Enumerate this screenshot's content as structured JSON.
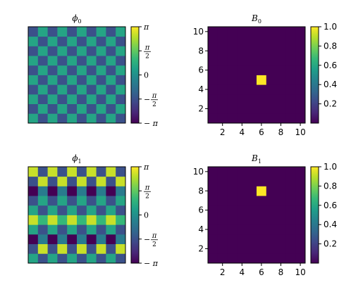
{
  "colormap": [
    "#440154",
    "#482878",
    "#3e4989",
    "#31688e",
    "#26828e",
    "#1f9e89",
    "#35b779",
    "#6ece58",
    "#b5de2b",
    "#fde725"
  ],
  "chart_data": [
    {
      "type": "heatmap",
      "title": {
        "symbol": "ϕ",
        "sub": "0"
      },
      "matrix": [
        [
          0.5236,
          -1.5708,
          0.5236,
          -1.5708,
          0.5236,
          -1.5708,
          0.5236,
          -1.5708,
          0.5236,
          -1.5708
        ],
        [
          -1.5708,
          0.5236,
          -1.5708,
          0.5236,
          -1.5708,
          0.5236,
          -1.5708,
          0.5236,
          -1.5708,
          0.5236
        ],
        [
          0.5236,
          -1.5708,
          0.5236,
          -1.5708,
          0.5236,
          -1.5708,
          0.5236,
          -1.5708,
          0.5236,
          -1.5708
        ],
        [
          -1.5708,
          0.5236,
          -1.5708,
          0.5236,
          -1.5708,
          0.5236,
          -1.5708,
          0.5236,
          -1.5708,
          0.5236
        ],
        [
          0.5236,
          -1.5708,
          0.5236,
          -1.5708,
          0.5236,
          -1.5708,
          0.5236,
          -1.5708,
          0.5236,
          -1.5708
        ],
        [
          -1.5708,
          0.5236,
          -1.5708,
          0.5236,
          -1.5708,
          0.5236,
          -1.5708,
          0.5236,
          -1.5708,
          0.5236
        ],
        [
          0.5236,
          -1.5708,
          0.5236,
          -1.5708,
          0.5236,
          -1.5708,
          0.5236,
          -1.5708,
          0.5236,
          -1.5708
        ],
        [
          -1.5708,
          0.5236,
          -1.5708,
          0.5236,
          -1.5708,
          0.5236,
          -1.5708,
          0.5236,
          -1.5708,
          0.5236
        ],
        [
          0.5236,
          -1.5708,
          0.5236,
          -1.5708,
          0.5236,
          -1.5708,
          0.5236,
          -1.5708,
          0.5236,
          -1.5708
        ],
        [
          -1.5708,
          0.5236,
          -1.5708,
          0.5236,
          -1.5708,
          0.5236,
          -1.5708,
          0.5236,
          -1.5708,
          0.5236
        ]
      ],
      "vmin": -3.1416,
      "vmax": 3.1416,
      "axes_visible": false,
      "colorbar": {
        "ticks": [
          {
            "value": 3.1416,
            "label": "π",
            "kind": "math",
            "sign": ""
          },
          {
            "value": 1.5708,
            "label": "π/2",
            "kind": "frac",
            "sign": ""
          },
          {
            "value": 0,
            "label": "0",
            "kind": "plain",
            "sign": ""
          },
          {
            "value": -1.5708,
            "label": "−π/2",
            "kind": "frac",
            "sign": "−"
          },
          {
            "value": -3.1416,
            "label": "−π",
            "kind": "math",
            "sign": "−"
          }
        ]
      }
    },
    {
      "type": "heatmap",
      "title": {
        "symbol": "B",
        "sub": "0"
      },
      "x": [
        1,
        2,
        3,
        4,
        5,
        6,
        7,
        8,
        9,
        10
      ],
      "y": [
        1,
        2,
        3,
        4,
        5,
        6,
        7,
        8,
        9,
        10
      ],
      "matrix": [
        [
          0,
          0,
          0,
          0,
          0,
          0,
          0,
          0,
          0,
          0
        ],
        [
          0,
          0,
          0,
          0,
          0,
          0,
          0,
          0,
          0,
          0
        ],
        [
          0,
          0,
          0,
          0,
          0,
          0,
          0,
          0,
          0,
          0
        ],
        [
          0,
          0,
          0,
          0,
          0,
          0,
          0,
          0,
          0,
          0
        ],
        [
          0,
          0,
          0,
          0,
          0,
          1,
          0,
          0,
          0,
          0
        ],
        [
          0,
          0,
          0,
          0,
          0,
          0,
          0,
          0,
          0,
          0
        ],
        [
          0,
          0,
          0,
          0,
          0,
          0,
          0,
          0,
          0,
          0
        ],
        [
          0,
          0,
          0,
          0,
          0,
          0,
          0,
          0,
          0,
          0
        ],
        [
          0,
          0,
          0,
          0,
          0,
          0,
          0,
          0,
          0,
          0
        ],
        [
          0,
          0,
          0,
          0,
          0,
          0,
          0,
          0,
          0,
          0
        ]
      ],
      "vmin": 0,
      "vmax": 1,
      "axes_visible": true,
      "xlim": [
        0.5,
        10.5
      ],
      "ylim": [
        0.5,
        10.5
      ],
      "xticks": [
        2,
        4,
        6,
        8,
        10
      ],
      "yticks": [
        2,
        4,
        6,
        8,
        10
      ],
      "colorbar": {
        "ticks": [
          {
            "value": 1.0,
            "label": "1.0"
          },
          {
            "value": 0.8,
            "label": "0.8"
          },
          {
            "value": 0.6,
            "label": "0.6"
          },
          {
            "value": 0.4,
            "label": "0.4"
          },
          {
            "value": 0.2,
            "label": "0.2"
          }
        ]
      }
    },
    {
      "type": "heatmap",
      "title": {
        "symbol": "ϕ",
        "sub": "1"
      },
      "matrix": [
        [
          0.5236,
          -1.5708,
          0.5236,
          -1.5708,
          0.5236,
          -1.5708,
          0.5236,
          -1.5708,
          0.5236,
          -1.5708
        ],
        [
          -1.5708,
          2.618,
          -1.5708,
          2.618,
          -1.5708,
          2.618,
          -1.5708,
          2.618,
          -1.5708,
          2.618
        ],
        [
          -3.1416,
          -0.5236,
          -3.1416,
          -0.5236,
          -3.1416,
          -0.5236,
          -3.1416,
          -0.5236,
          -3.1416,
          -0.5236
        ],
        [
          0.5236,
          -1.5708,
          0.5236,
          -1.5708,
          0.5236,
          -1.5708,
          0.5236,
          -1.5708,
          0.5236,
          -1.5708
        ],
        [
          2.618,
          1.0472,
          2.618,
          1.0472,
          2.618,
          1.0472,
          2.618,
          1.0472,
          2.618,
          1.0472
        ],
        [
          0.5236,
          -1.5708,
          0.5236,
          -1.5708,
          0.5236,
          -1.5708,
          0.5236,
          -1.5708,
          0.5236,
          -1.5708
        ],
        [
          -1.5708,
          0.5236,
          -1.5708,
          0.5236,
          -1.5708,
          0.5236,
          -1.5708,
          0.5236,
          -1.5708,
          0.5236
        ],
        [
          -3.1416,
          -0.5236,
          -3.1416,
          -0.5236,
          -3.1416,
          -0.5236,
          -3.1416,
          -0.5236,
          -3.1416,
          -0.5236
        ],
        [
          -1.5708,
          2.618,
          -1.5708,
          2.618,
          -1.5708,
          2.618,
          -1.5708,
          2.618,
          -1.5708,
          2.618
        ],
        [
          2.618,
          -1.5708,
          2.618,
          -1.5708,
          2.618,
          -1.5708,
          2.618,
          -1.5708,
          2.618,
          -1.5708
        ]
      ],
      "vmin": -3.1416,
      "vmax": 3.1416,
      "axes_visible": false,
      "colorbar": {
        "ticks": [
          {
            "value": 3.1416,
            "label": "π",
            "kind": "math",
            "sign": ""
          },
          {
            "value": 1.5708,
            "label": "π/2",
            "kind": "frac",
            "sign": ""
          },
          {
            "value": 0,
            "label": "0",
            "kind": "plain",
            "sign": ""
          },
          {
            "value": -1.5708,
            "label": "−π/2",
            "kind": "frac",
            "sign": "−"
          },
          {
            "value": -3.1416,
            "label": "−π",
            "kind": "math",
            "sign": "−"
          }
        ]
      }
    },
    {
      "type": "heatmap",
      "title": {
        "symbol": "B",
        "sub": "1"
      },
      "x": [
        1,
        2,
        3,
        4,
        5,
        6,
        7,
        8,
        9,
        10
      ],
      "y": [
        1,
        2,
        3,
        4,
        5,
        6,
        7,
        8,
        9,
        10
      ],
      "matrix": [
        [
          0,
          0,
          0,
          0,
          0,
          0,
          0,
          0,
          0,
          0
        ],
        [
          0,
          0,
          0,
          0,
          0,
          0,
          0,
          0,
          0,
          0
        ],
        [
          0,
          0,
          0,
          0,
          0,
          0,
          0,
          0,
          0,
          0
        ],
        [
          0,
          0,
          0,
          0,
          0,
          0,
          0,
          0,
          0,
          0
        ],
        [
          0,
          0,
          0,
          0,
          0,
          0,
          0,
          0,
          0,
          0
        ],
        [
          0,
          0,
          0,
          0,
          0,
          0,
          0,
          0,
          0,
          0
        ],
        [
          0,
          0,
          0,
          0,
          0,
          0,
          0,
          0,
          0,
          0
        ],
        [
          0,
          0,
          0,
          0,
          0,
          1,
          0,
          0,
          0,
          0
        ],
        [
          0,
          0,
          0,
          0,
          0,
          0,
          0,
          0,
          0,
          0
        ],
        [
          0,
          0,
          0,
          0,
          0,
          0,
          0,
          0,
          0,
          0
        ]
      ],
      "vmin": 0,
      "vmax": 1,
      "axes_visible": true,
      "xlim": [
        0.5,
        10.5
      ],
      "ylim": [
        0.5,
        10.5
      ],
      "xticks": [
        2,
        4,
        6,
        8,
        10
      ],
      "yticks": [
        2,
        4,
        6,
        8,
        10
      ],
      "colorbar": {
        "ticks": [
          {
            "value": 1.0,
            "label": "1.0"
          },
          {
            "value": 0.8,
            "label": "0.8"
          },
          {
            "value": 0.6,
            "label": "0.6"
          },
          {
            "value": 0.4,
            "label": "0.4"
          },
          {
            "value": 0.2,
            "label": "0.2"
          }
        ]
      }
    }
  ]
}
